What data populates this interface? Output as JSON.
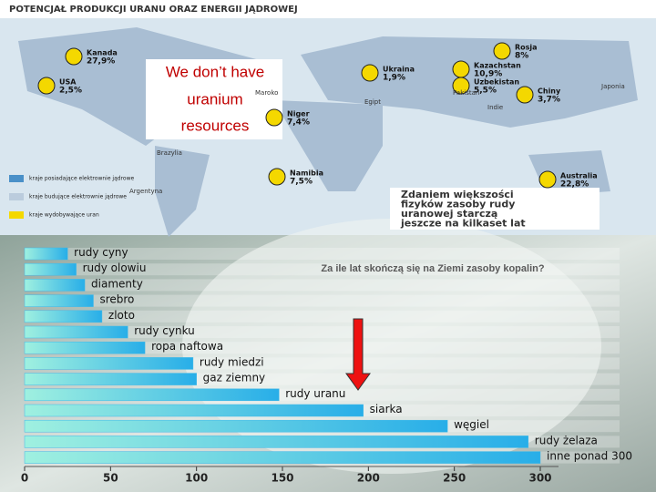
{
  "map": {
    "title": "POTENCJAŁ PRODUKCJI URANU ORAZ ENERGII JĄDROWEJ",
    "overlay": [
      "We don’t have",
      "uranium",
      "resources"
    ],
    "countries": [
      {
        "name": "Kanada",
        "share": "27,9%"
      },
      {
        "name": "USA",
        "share": "2,5%"
      },
      {
        "name": "Rosja",
        "share": "8%"
      },
      {
        "name": "Kazachstan",
        "share": "10,9%"
      },
      {
        "name": "Uzbekistan",
        "share": "5,5%"
      },
      {
        "name": "Ukraina",
        "share": "1,9%"
      },
      {
        "name": "Chiny",
        "share": "3,7%"
      },
      {
        "name": "Niger",
        "share": "7,4%"
      },
      {
        "name": "Namibia",
        "share": "7,5%"
      },
      {
        "name": "Australia",
        "share": "22,8%"
      }
    ],
    "places": [
      "Brazylia",
      "Argentyna",
      "Maroko",
      "Egipt",
      "Indie",
      "Pakistan",
      "Japonia"
    ],
    "legend": [
      "kraje posiadające elektrownie jądrowe",
      "kraje budujące elektrownie jądrowe",
      "kraje wydobywające uran"
    ],
    "note": [
      "Zdaniem większości",
      "fizyków zasoby rudy",
      "uranowej starczą",
      "jeszcze na kilkaset lat"
    ]
  },
  "chart_data": {
    "type": "barh",
    "title": "Za ile lat skończą się na Ziemi zasoby kopalin?",
    "categories": [
      "rudy cyny",
      "rudy olowiu",
      "diamenty",
      "srebro",
      "zloto",
      "rudy cynku",
      "ropa naftowa",
      "rudy miedzi",
      "gaz ziemny",
      "rudy uranu",
      "siarka",
      "węgiel",
      "rudy żelaza",
      "inne ponad 300"
    ],
    "values": [
      25,
      30,
      35,
      40,
      45,
      60,
      70,
      98,
      100,
      148,
      197,
      246,
      293,
      300
    ],
    "color": "#3fb8e8",
    "xlim": [
      0,
      300
    ],
    "xticks": [
      0,
      50,
      100,
      150,
      200,
      250,
      300
    ]
  }
}
